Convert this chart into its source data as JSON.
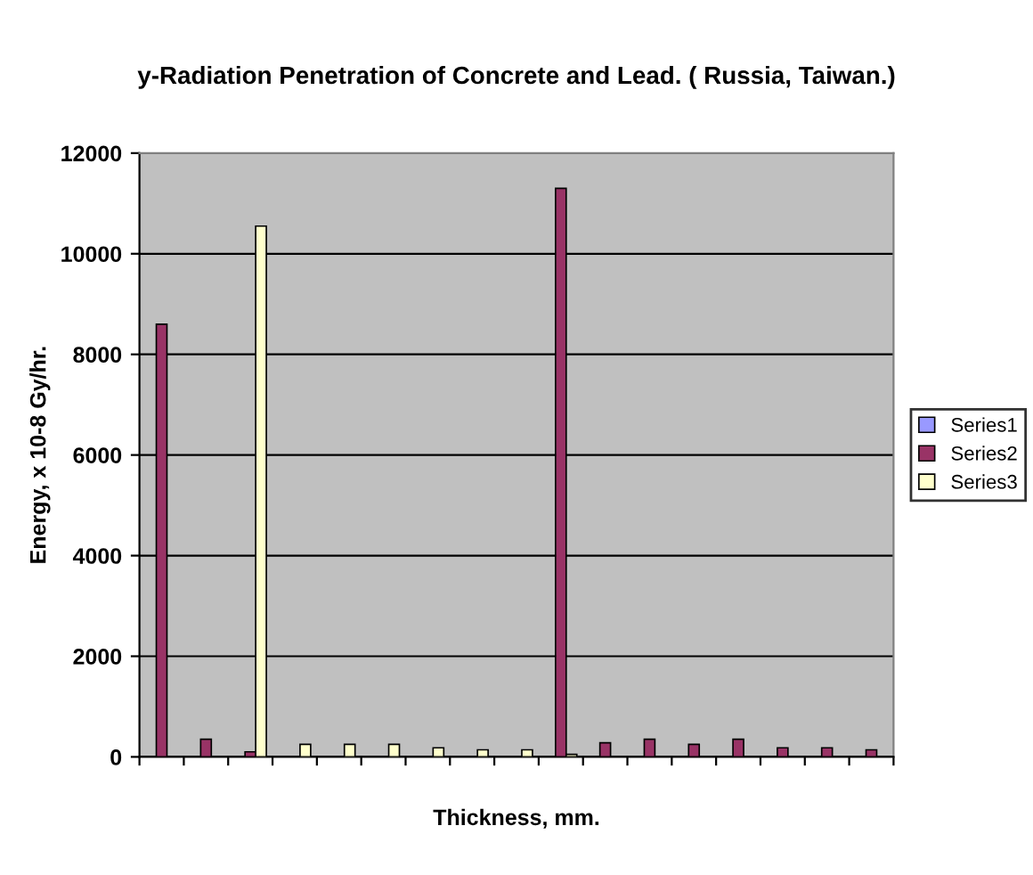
{
  "chart_data": {
    "type": "bar",
    "title": "y-Radiation Penetration of Concrete and Lead. ( Russia, Taiwan.)",
    "xlabel": "Thickness, mm.",
    "ylabel": "Energy, x 10-8 Gy/hr.",
    "categories": [
      null,
      null,
      null,
      null,
      null,
      null,
      null,
      null,
      null,
      null,
      null,
      null,
      null,
      null,
      null,
      null,
      null
    ],
    "series": [
      {
        "name": "Series1",
        "color": "#9999ff",
        "values": [
          null,
          null,
          null,
          null,
          null,
          null,
          null,
          null,
          null,
          null,
          null,
          null,
          null,
          null,
          null,
          null,
          null
        ]
      },
      {
        "name": "Series2",
        "color": "#993366",
        "values": [
          8600,
          350,
          100,
          null,
          null,
          null,
          null,
          null,
          null,
          11300,
          280,
          350,
          250,
          350,
          180,
          180,
          140
        ]
      },
      {
        "name": "Series3",
        "color": "#ffffcc",
        "values": [
          null,
          null,
          10550,
          250,
          250,
          250,
          180,
          140,
          140,
          50,
          null,
          null,
          null,
          null,
          null,
          null,
          null
        ]
      }
    ],
    "ylim": [
      0,
      12000
    ],
    "yticks": [
      0,
      2000,
      4000,
      6000,
      8000,
      10000,
      12000
    ],
    "grid": "y",
    "legend": "right"
  }
}
